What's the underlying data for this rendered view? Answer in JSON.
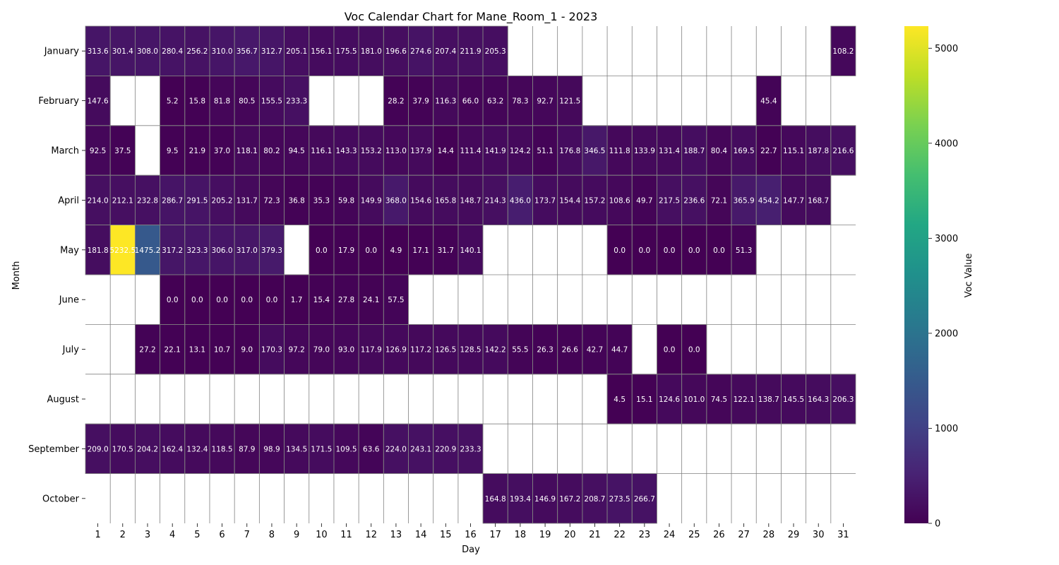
{
  "chart_data": {
    "type": "heatmap",
    "title": "Voc Calendar Chart for Mane_Room_1 - 2023",
    "xlabel": "Day",
    "ylabel": "Month",
    "colorbar_label": "Voc Value",
    "colormap": "viridis",
    "vmin": 0,
    "vmax": 5232.5,
    "colorbar_ticks": [
      0,
      1000,
      2000,
      3000,
      4000,
      5000
    ],
    "x": [
      "1",
      "2",
      "3",
      "4",
      "5",
      "6",
      "7",
      "8",
      "9",
      "10",
      "11",
      "12",
      "13",
      "14",
      "15",
      "16",
      "17",
      "18",
      "19",
      "20",
      "21",
      "22",
      "23",
      "24",
      "25",
      "26",
      "27",
      "28",
      "29",
      "30",
      "31"
    ],
    "y": [
      "January",
      "February",
      "March",
      "April",
      "May",
      "June",
      "July",
      "August",
      "September",
      "October"
    ],
    "values": [
      [
        313.6,
        301.4,
        308.0,
        280.4,
        256.2,
        310.0,
        356.7,
        312.7,
        205.1,
        156.1,
        175.5,
        181.0,
        196.6,
        274.6,
        207.4,
        211.9,
        205.3,
        null,
        null,
        null,
        null,
        null,
        null,
        null,
        null,
        null,
        null,
        null,
        null,
        null,
        108.2
      ],
      [
        147.6,
        null,
        null,
        5.2,
        15.8,
        81.8,
        80.5,
        155.5,
        233.3,
        null,
        null,
        null,
        28.2,
        37.9,
        116.3,
        66.0,
        63.2,
        78.3,
        92.7,
        121.5,
        null,
        null,
        null,
        null,
        null,
        null,
        null,
        45.4,
        null,
        null,
        null
      ],
      [
        92.5,
        37.5,
        null,
        9.5,
        21.9,
        37.0,
        118.1,
        80.2,
        94.5,
        116.1,
        143.3,
        153.2,
        113.0,
        137.9,
        14.4,
        111.4,
        141.9,
        124.2,
        51.1,
        176.8,
        346.5,
        111.8,
        133.9,
        131.4,
        188.7,
        80.4,
        169.5,
        22.7,
        115.1,
        187.8,
        216.6
      ],
      [
        214.0,
        212.1,
        232.8,
        286.7,
        291.5,
        205.2,
        131.7,
        72.3,
        36.8,
        35.3,
        59.8,
        149.9,
        368.0,
        154.6,
        165.8,
        148.7,
        214.3,
        436.0,
        173.7,
        154.4,
        157.2,
        108.6,
        49.7,
        217.5,
        236.6,
        72.1,
        365.9,
        454.2,
        147.7,
        168.7,
        null
      ],
      [
        181.8,
        5232.5,
        1475.2,
        317.2,
        323.3,
        306.0,
        317.0,
        379.3,
        null,
        0.0,
        17.9,
        0.0,
        4.9,
        17.1,
        31.7,
        140.1,
        null,
        null,
        null,
        null,
        null,
        0.0,
        0.0,
        0.0,
        0.0,
        0.0,
        51.3,
        null,
        null,
        null,
        null
      ],
      [
        null,
        null,
        null,
        0.0,
        0.0,
        0.0,
        0.0,
        0.0,
        1.7,
        15.4,
        27.8,
        24.1,
        57.5,
        null,
        null,
        null,
        null,
        null,
        null,
        null,
        null,
        null,
        null,
        null,
        null,
        null,
        null,
        null,
        null,
        null,
        null
      ],
      [
        null,
        null,
        27.2,
        22.1,
        13.1,
        10.7,
        9.0,
        170.3,
        97.2,
        79.0,
        93.0,
        117.9,
        126.9,
        117.2,
        126.5,
        128.5,
        142.2,
        55.5,
        26.3,
        26.6,
        42.7,
        44.7,
        null,
        0.0,
        0.0,
        null,
        null,
        null,
        null,
        null,
        null
      ],
      [
        null,
        null,
        null,
        null,
        null,
        null,
        null,
        null,
        null,
        null,
        null,
        null,
        null,
        null,
        null,
        null,
        null,
        null,
        null,
        null,
        null,
        4.5,
        15.1,
        124.6,
        101.0,
        74.5,
        122.1,
        138.7,
        145.5,
        164.3,
        206.3
      ],
      [
        209.0,
        170.5,
        204.2,
        162.4,
        132.4,
        118.5,
        87.9,
        98.9,
        134.5,
        171.5,
        109.5,
        63.6,
        224.0,
        243.1,
        220.9,
        233.3,
        null,
        null,
        null,
        null,
        null,
        null,
        null,
        null,
        null,
        null,
        null,
        null,
        null,
        null,
        null
      ],
      [
        null,
        null,
        null,
        null,
        null,
        null,
        null,
        null,
        null,
        null,
        null,
        null,
        null,
        null,
        null,
        null,
        164.8,
        193.4,
        146.9,
        167.2,
        208.7,
        273.5,
        266.7,
        null,
        null,
        null,
        null,
        null,
        null,
        null,
        null
      ]
    ]
  }
}
